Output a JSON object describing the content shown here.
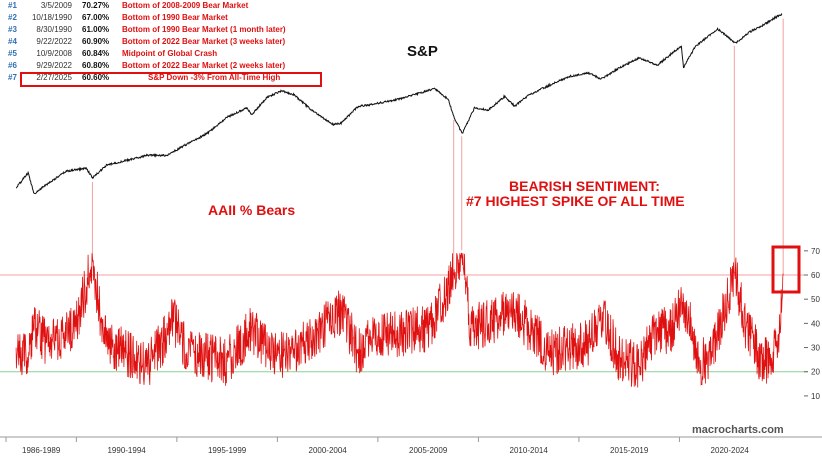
{
  "colors": {
    "accent_red": "#e01010",
    "sp_line": "#111111",
    "bears_line": "#e01010",
    "level_60_line": "#f2a0a0",
    "level_20_line": "#8fd08f",
    "rank_blue": "#2f6fb3"
  },
  "chart_data": [
    {
      "type": "table",
      "columns": [
        "rank",
        "date",
        "value",
        "description"
      ],
      "rows": [
        {
          "rank": "#1",
          "date": "3/5/2009",
          "value": "70.27%",
          "description": "Bottom of 2008-2009 Bear Market"
        },
        {
          "rank": "#2",
          "date": "10/18/1990",
          "value": "67.00%",
          "description": "Bottom of 1990 Bear Market"
        },
        {
          "rank": "#3",
          "date": "8/30/1990",
          "value": "61.00%",
          "description": "Bottom of 1990 Bear Market (1 month later)"
        },
        {
          "rank": "#4",
          "date": "9/22/2022",
          "value": "60.90%",
          "description": "Bottom of 2022 Bear Market (3 weeks later)"
        },
        {
          "rank": "#5",
          "date": "10/9/2008",
          "value": "60.84%",
          "description": "Midpoint of Global Crash"
        },
        {
          "rank": "#6",
          "date": "9/29/2022",
          "value": "60.80%",
          "description": "Bottom of 2022 Bear Market (2 weeks later)"
        },
        {
          "rank": "#7",
          "date": "2/27/2025",
          "value": "60.60%",
          "description": "S&P Down -3% From All-Time High",
          "highlighted": true
        }
      ]
    },
    {
      "type": "line",
      "title": "S&P",
      "scale": "log",
      "x_range": [
        1986.5,
        2025.5
      ],
      "points": [
        [
          1987.0,
          250
        ],
        [
          1987.6,
          330
        ],
        [
          1987.9,
          225
        ],
        [
          1988.5,
          265
        ],
        [
          1989.5,
          340
        ],
        [
          1990.5,
          360
        ],
        [
          1990.8,
          300
        ],
        [
          1991.5,
          380
        ],
        [
          1992.5,
          415
        ],
        [
          1993.5,
          455
        ],
        [
          1994.5,
          455
        ],
        [
          1995.5,
          560
        ],
        [
          1996.5,
          680
        ],
        [
          1997.5,
          920
        ],
        [
          1998.5,
          1100
        ],
        [
          1998.7,
          960
        ],
        [
          1999.5,
          1330
        ],
        [
          2000.2,
          1500
        ],
        [
          2000.8,
          1400
        ],
        [
          2001.7,
          1050
        ],
        [
          2002.8,
          800
        ],
        [
          2003.2,
          830
        ],
        [
          2004.0,
          1120
        ],
        [
          2005.0,
          1190
        ],
        [
          2006.0,
          1280
        ],
        [
          2007.0,
          1420
        ],
        [
          2007.8,
          1560
        ],
        [
          2008.5,
          1280
        ],
        [
          2008.8,
          900
        ],
        [
          2009.2,
          680
        ],
        [
          2009.8,
          1090
        ],
        [
          2010.5,
          1050
        ],
        [
          2011.3,
          1350
        ],
        [
          2011.8,
          1130
        ],
        [
          2012.5,
          1380
        ],
        [
          2013.5,
          1650
        ],
        [
          2014.5,
          1950
        ],
        [
          2015.5,
          2080
        ],
        [
          2016.1,
          1860
        ],
        [
          2017.0,
          2280
        ],
        [
          2018.0,
          2750
        ],
        [
          2018.9,
          2400
        ],
        [
          2019.8,
          3150
        ],
        [
          2020.1,
          3380
        ],
        [
          2020.2,
          2300
        ],
        [
          2020.8,
          3400
        ],
        [
          2021.9,
          4700
        ],
        [
          2022.8,
          3600
        ],
        [
          2023.5,
          4450
        ],
        [
          2024.0,
          4850
        ],
        [
          2024.9,
          5950
        ],
        [
          2025.1,
          6100
        ]
      ]
    },
    {
      "type": "line",
      "title": "AAII % Bears",
      "x_range": [
        1986.5,
        2025.5
      ],
      "ylim": [
        5,
        72
      ],
      "y_ticks": [
        10,
        20,
        30,
        40,
        50,
        60,
        70
      ],
      "reference_lines": [
        60,
        20
      ],
      "points": [
        [
          1987.0,
          30
        ],
        [
          1987.5,
          25
        ],
        [
          1987.9,
          38
        ],
        [
          1988.5,
          32
        ],
        [
          1989.5,
          35
        ],
        [
          1990.0,
          40
        ],
        [
          1990.66,
          61.0
        ],
        [
          1990.8,
          67.0
        ],
        [
          1991.2,
          42
        ],
        [
          1991.8,
          30
        ],
        [
          1992.5,
          28
        ],
        [
          1993.5,
          22
        ],
        [
          1994.3,
          32
        ],
        [
          1994.8,
          42
        ],
        [
          1995.5,
          28
        ],
        [
          1996.5,
          26
        ],
        [
          1997.5,
          24
        ],
        [
          1998.7,
          38
        ],
        [
          1999.5,
          30
        ],
        [
          2000.5,
          26
        ],
        [
          2001.5,
          32
        ],
        [
          2002.5,
          40
        ],
        [
          2003.2,
          45
        ],
        [
          2004.0,
          28
        ],
        [
          2005.0,
          35
        ],
        [
          2006.0,
          36
        ],
        [
          2007.5,
          38
        ],
        [
          2008.0,
          45
        ],
        [
          2008.77,
          60.84
        ],
        [
          2009.17,
          70.27
        ],
        [
          2009.6,
          38
        ],
        [
          2010.5,
          40
        ],
        [
          2011.8,
          46
        ],
        [
          2012.5,
          38
        ],
        [
          2013.5,
          28
        ],
        [
          2014.5,
          30
        ],
        [
          2015.5,
          32
        ],
        [
          2016.1,
          44
        ],
        [
          2017.0,
          26
        ],
        [
          2018.0,
          22
        ],
        [
          2018.9,
          38
        ],
        [
          2019.5,
          36
        ],
        [
          2020.2,
          50
        ],
        [
          2021.0,
          24
        ],
        [
          2021.6,
          26
        ],
        [
          2022.73,
          60.9
        ],
        [
          2022.75,
          60.8
        ],
        [
          2023.3,
          38
        ],
        [
          2024.0,
          26
        ],
        [
          2024.6,
          24
        ],
        [
          2025.0,
          36
        ],
        [
          2025.16,
          60.6
        ]
      ]
    }
  ],
  "annotations": {
    "sp_title": "S&P",
    "bears_title": "AAII % Bears",
    "sentiment_line1": "BEARISH SENTIMENT:",
    "sentiment_line2": "#7 HIGHEST SPIKE OF ALL TIME",
    "watermark": "macrocharts.com"
  },
  "x_axis_labels": [
    "1986-1989",
    "1990-1994",
    "1995-1999",
    "2000-2004",
    "2005-2009",
    "2010-2014",
    "2015-2019",
    "2020-2024"
  ],
  "y_axis_labels": [
    "70",
    "60",
    "50",
    "40",
    "30",
    "20",
    "10"
  ]
}
